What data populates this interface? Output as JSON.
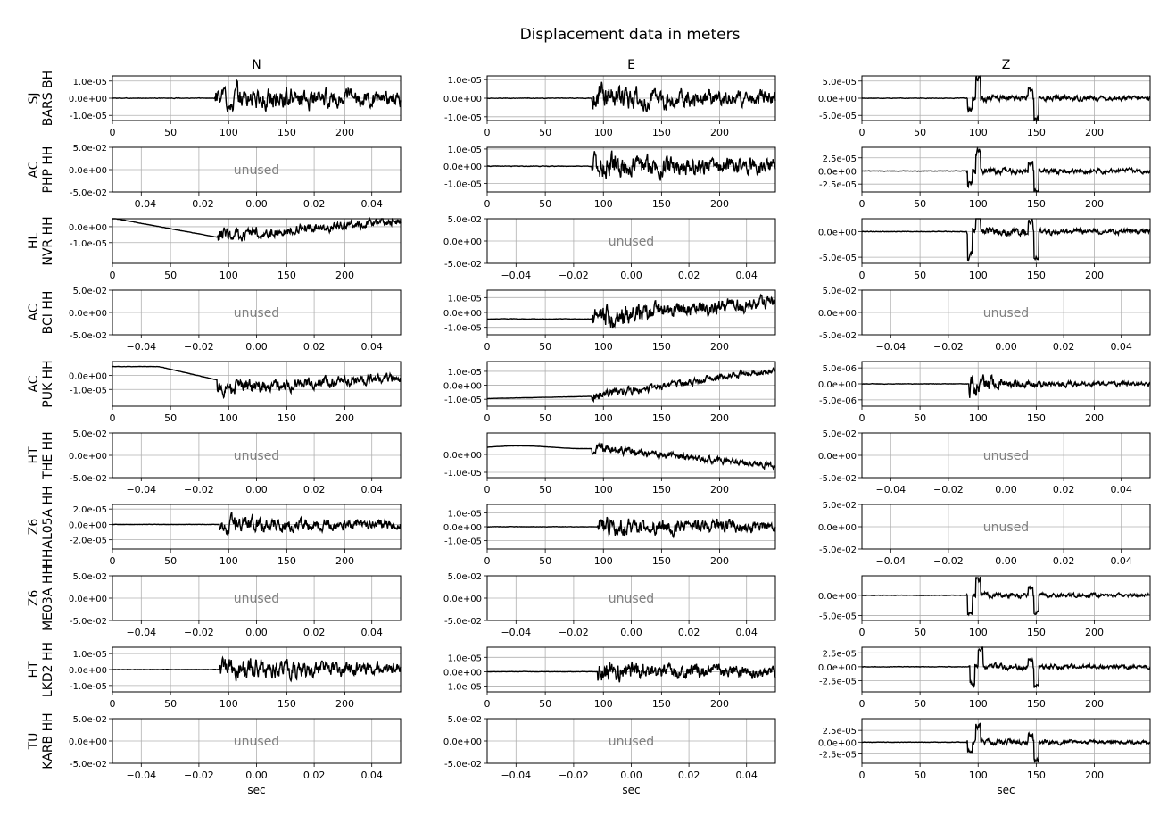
{
  "chart_data": {
    "type": "line",
    "title": "Displacement data in meters",
    "columns": [
      "N",
      "E",
      "Z"
    ],
    "xlabel": "sec",
    "unused_label": "unused",
    "colors": {
      "trace": "#000000",
      "grid": "#b0b0b0",
      "unused": "#808080"
    },
    "time_ticks": [
      0,
      50,
      100,
      150,
      200
    ],
    "time_range": [
      0,
      248
    ],
    "unused_ticks": [
      "−0.04",
      "−0.02",
      "0.00",
      "0.02",
      "0.04"
    ],
    "unused_yticks": [
      "5.0e-02",
      "0.0e+00",
      "-5.0e-02"
    ],
    "rows": [
      {
        "net": "SJ",
        "sta": "BARS BH",
        "panels": [
          {
            "used": true,
            "yrange": [
              -1.3e-05,
              1.3e-05
            ],
            "yticks": [
              [
                1e-05,
                "1.0e-05"
              ],
              [
                0,
                "0.0e+00"
              ],
              [
                -1e-05,
                "-1.0e-05"
              ]
            ],
            "onset": 88,
            "amp": 1.1e-05,
            "style": "noisy"
          },
          {
            "used": true,
            "yrange": [
              -1.2e-05,
              1.2e-05
            ],
            "yticks": [
              [
                1e-05,
                "1.0e-05"
              ],
              [
                0,
                "0.0e+00"
              ],
              [
                -1e-05,
                "-1.0e-05"
              ]
            ],
            "onset": 90,
            "amp": 1e-05,
            "style": "noisy"
          },
          {
            "used": true,
            "yrange": [
              -6.5e-05,
              6.5e-05
            ],
            "yticks": [
              [
                5e-05,
                "5.0e-05"
              ],
              [
                0,
                "0.0e+00"
              ],
              [
                -5e-05,
                "-5.0e-05"
              ]
            ],
            "onset": 90,
            "amp": 5.5e-05,
            "style": "spiky"
          }
        ]
      },
      {
        "net": "AC",
        "sta": "PHP HH",
        "panels": [
          {
            "used": false
          },
          {
            "used": true,
            "yrange": [
              -1.5e-05,
              1.1e-05
            ],
            "yticks": [
              [
                1e-05,
                "1.0e-05"
              ],
              [
                0,
                "0.0e+00"
              ],
              [
                -1e-05,
                "-1.0e-05"
              ]
            ],
            "onset": 90,
            "amp": 1.1e-05,
            "style": "noisy"
          },
          {
            "used": true,
            "yrange": [
              -4e-05,
              4.5e-05
            ],
            "yticks": [
              [
                2.5e-05,
                "2.5e-05"
              ],
              [
                0,
                "0.0e+00"
              ],
              [
                -2.5e-05,
                "-2.5e-05"
              ]
            ],
            "onset": 90,
            "amp": 3.8e-05,
            "style": "spiky"
          }
        ]
      },
      {
        "net": "HL",
        "sta": "NVR HH",
        "panels": [
          {
            "used": true,
            "yrange": [
              -2.3e-05,
              5e-06
            ],
            "yticks": [
              [
                0,
                "0.0e+00"
              ],
              [
                -1e-05,
                "-1.0e-05"
              ]
            ],
            "onset": 90,
            "amp": 6e-06,
            "style": "drift-down"
          },
          {
            "used": false
          },
          {
            "used": true,
            "yrange": [
              -6.2e-05,
              2.5e-05
            ],
            "yticks": [
              [
                0,
                "0.0e+00"
              ],
              [
                -5e-05,
                "-5.0e-05"
              ]
            ],
            "onset": 90,
            "amp": 4.5e-05,
            "style": "spiky-neg"
          }
        ]
      },
      {
        "net": "AC",
        "sta": "BCI HH",
        "panels": [
          {
            "used": false
          },
          {
            "used": true,
            "yrange": [
              -1.5e-05,
              1.5e-05
            ],
            "yticks": [
              [
                1e-05,
                "1.0e-05"
              ],
              [
                0,
                "0.0e+00"
              ],
              [
                -1e-05,
                "-1.0e-05"
              ]
            ],
            "onset": 90,
            "amp": 1.1e-05,
            "style": "dense-rise"
          },
          {
            "used": false
          }
        ]
      },
      {
        "net": "AC",
        "sta": "PUK HH",
        "panels": [
          {
            "used": true,
            "yrange": [
              -2.2e-05,
              1e-05
            ],
            "yticks": [
              [
                0,
                "0.0e+00"
              ],
              [
                -1e-05,
                "-1.0e-05"
              ]
            ],
            "onset": 90,
            "amp": 8e-06,
            "style": "drop"
          },
          {
            "used": true,
            "yrange": [
              -1.5e-05,
              1.7e-05
            ],
            "yticks": [
              [
                1e-05,
                "1.0e-05"
              ],
              [
                0,
                "0.0e+00"
              ],
              [
                -1e-05,
                "-1.0e-05"
              ]
            ],
            "onset": 90,
            "amp": 5e-06,
            "style": "rise"
          },
          {
            "used": true,
            "yrange": [
              -7e-06,
              7e-06
            ],
            "yticks": [
              [
                5e-06,
                "5.0e-06"
              ],
              [
                0,
                "0.0e+00"
              ],
              [
                -5e-06,
                "-5.0e-06"
              ]
            ],
            "onset": 92,
            "amp": 5e-06,
            "style": "burst"
          }
        ]
      },
      {
        "net": "HT",
        "sta": "THE HH",
        "panels": [
          {
            "used": false
          },
          {
            "used": true,
            "yrange": [
              -1.3e-05,
              1.2e-05
            ],
            "yticks": [
              [
                0,
                "0.0e+00"
              ],
              [
                -1e-05,
                "-1.0e-05"
              ]
            ],
            "onset": 90,
            "amp": 4e-06,
            "style": "fall"
          },
          {
            "used": false
          }
        ]
      },
      {
        "net": "Z6",
        "sta": "HHAL05A HH",
        "panels": [
          {
            "used": true,
            "yrange": [
              -3.2e-05,
              2.6e-05
            ],
            "yticks": [
              [
                2e-05,
                "2.0e-05"
              ],
              [
                0,
                "0.0e+00"
              ],
              [
                -2e-05,
                "-2.0e-05"
              ]
            ],
            "onset": 92,
            "amp": 1.6e-05,
            "style": "noisy"
          },
          {
            "used": true,
            "yrange": [
              -1.6e-05,
              1.6e-05
            ],
            "yticks": [
              [
                1e-05,
                "1.0e-05"
              ],
              [
                0,
                "0.0e+00"
              ],
              [
                -1e-05,
                "-1.0e-05"
              ]
            ],
            "onset": 95,
            "amp": 1e-05,
            "style": "noisy"
          },
          {
            "used": false
          }
        ]
      },
      {
        "net": "Z6",
        "sta": "ME03A HH",
        "panels": [
          {
            "used": false
          },
          {
            "used": false
          },
          {
            "used": true,
            "yrange": [
              -6.2e-05,
              4.8e-05
            ],
            "yticks": [
              [
                0,
                "0.0e+00"
              ],
              [
                -5e-05,
                "-5.0e-05"
              ]
            ],
            "onset": 90,
            "amp": 4e-05,
            "style": "spiky-neg"
          }
        ]
      },
      {
        "net": "HT",
        "sta": "LKD2 HH",
        "panels": [
          {
            "used": true,
            "yrange": [
              -1.4e-05,
              1.4e-05
            ],
            "yticks": [
              [
                1e-05,
                "1.0e-05"
              ],
              [
                0,
                "0.0e+00"
              ],
              [
                -1e-05,
                "-1.0e-05"
              ]
            ],
            "onset": 92,
            "amp": 1e-05,
            "style": "noisy"
          },
          {
            "used": true,
            "yrange": [
              -1.4e-05,
              1.7e-05
            ],
            "yticks": [
              [
                1e-05,
                "1.0e-05"
              ],
              [
                0,
                "0.0e+00"
              ],
              [
                -1e-05,
                "-1.0e-05"
              ]
            ],
            "onset": 95,
            "amp": 1e-05,
            "style": "noisy"
          },
          {
            "used": true,
            "yrange": [
              -4.5e-05,
              3.5e-05
            ],
            "yticks": [
              [
                2.5e-05,
                "2.5e-05"
              ],
              [
                0,
                "0.0e+00"
              ],
              [
                -2.5e-05,
                "-2.5e-05"
              ]
            ],
            "onset": 92,
            "amp": 3e-05,
            "style": "spiky-neg"
          }
        ]
      },
      {
        "net": "TU",
        "sta": "KARB HH",
        "panels": [
          {
            "used": false
          },
          {
            "used": false
          },
          {
            "used": true,
            "yrange": [
              -4.5e-05,
              5e-05
            ],
            "yticks": [
              [
                2.5e-05,
                "2.5e-05"
              ],
              [
                0,
                "0.0e+00"
              ],
              [
                -2.5e-05,
                "-2.5e-05"
              ]
            ],
            "onset": 90,
            "amp": 3.5e-05,
            "style": "spiky"
          }
        ]
      }
    ]
  }
}
